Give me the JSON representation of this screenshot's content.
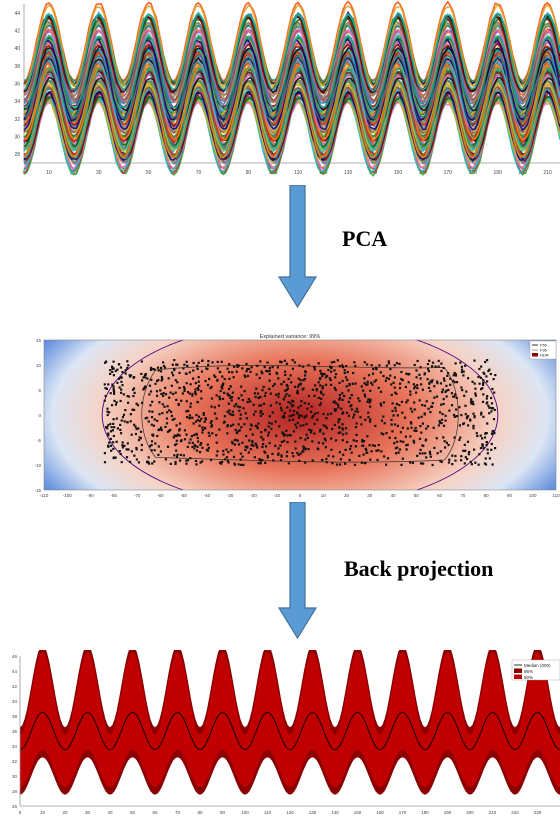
{
  "labels": {
    "step1": "PCA",
    "step2": "Back projection"
  },
  "colors": {
    "arrow_fill": "#5b9bd5",
    "arrow_stroke": "#41719c",
    "band_dark": "#8b0000",
    "band_light": "#c00000",
    "median": "#000000",
    "density_center": "#c0392b",
    "density_edge": "#1f5fd0"
  },
  "chart_data": [
    {
      "type": "line",
      "description_id": "functional-curves",
      "x_ticks": [
        "0",
        "10",
        "20",
        "30",
        "40",
        "50",
        "60",
        "70",
        "80",
        "90",
        "100",
        "110",
        "120",
        "130",
        "140",
        "150",
        "160",
        "170",
        "180",
        "190",
        "200",
        "210"
      ],
      "y_ticks": [
        "28",
        "30",
        "32",
        "34",
        "36",
        "38",
        "40",
        "42",
        "44"
      ],
      "xlim": [
        0,
        215
      ],
      "ylim": [
        27,
        45
      ],
      "period": 20,
      "amplitude": 4,
      "center_range": [
        30,
        40
      ],
      "series_colors": [
        "#2ca02c",
        "#d62728",
        "#1f77b4",
        "#ff7f0e",
        "#9467bd",
        "#8c564b",
        "#e377c2",
        "#17becf",
        "#bcbd22",
        "#7f7f7f",
        "#000000",
        "#006400",
        "#8b0000",
        "#00008b",
        "#ff4500",
        "#2e8b57",
        "#daa520",
        "#20b2aa"
      ]
    },
    {
      "type": "scatter",
      "description_id": "pca-projection",
      "title": "Explained variance: 99%",
      "x_ticks": [
        "-110",
        "-100",
        "-90",
        "-80",
        "-70",
        "-60",
        "-50",
        "-40",
        "-30",
        "-20",
        "-10",
        "0",
        "10",
        "20",
        "30",
        "40",
        "50",
        "60",
        "70",
        "80",
        "90",
        "100",
        "110"
      ],
      "y_ticks": [
        "15",
        "10",
        "5",
        "0",
        "-5",
        "-10",
        "-15"
      ],
      "xlim": [
        -110,
        110
      ],
      "ylim": [
        -15,
        15
      ],
      "point_x_range": [
        -84,
        84
      ],
      "point_y_range": [
        -10,
        11
      ],
      "legend": [
        "F50",
        "F95",
        "HDR"
      ],
      "legend_colors": [
        "#000000",
        "#888888",
        "#8b0000"
      ]
    },
    {
      "type": "area",
      "description_id": "back-projected-bands",
      "x_ticks": [
        "0",
        "10",
        "20",
        "30",
        "40",
        "50",
        "60",
        "70",
        "80",
        "90",
        "100",
        "110",
        "120",
        "130",
        "140",
        "150",
        "160",
        "170",
        "180",
        "190",
        "200",
        "210",
        "220",
        "230"
      ],
      "y_ticks": [
        "26",
        "28",
        "30",
        "32",
        "34",
        "36",
        "38",
        "40",
        "42",
        "44",
        "46"
      ],
      "xlim": [
        0,
        240
      ],
      "ylim": [
        26,
        46
      ],
      "period": 20,
      "median_center": 36,
      "median_amplitude": 2.5,
      "band_95": [
        4.5,
        7.5
      ],
      "band_50": [
        3.5,
        6.5
      ],
      "legend": [
        "Median (000)",
        "95%",
        "50%"
      ],
      "legend_colors": [
        "#000000",
        "#8b0000",
        "#c00000"
      ]
    }
  ]
}
